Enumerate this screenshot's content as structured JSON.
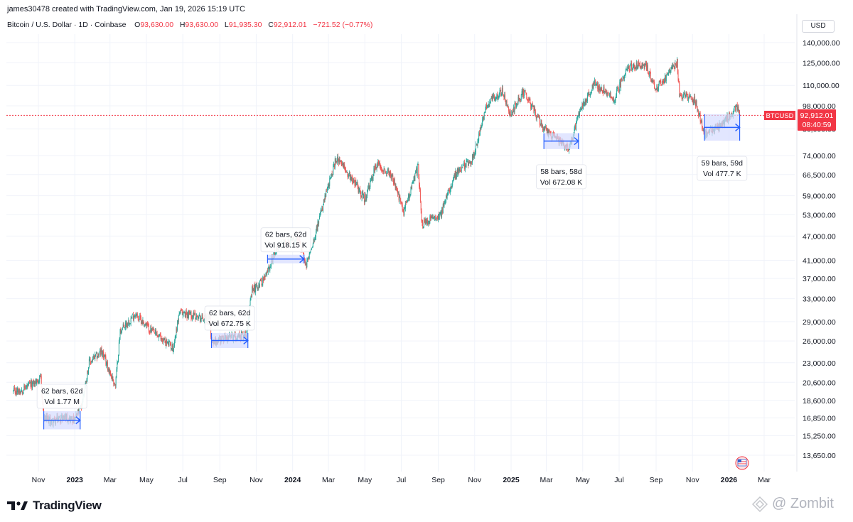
{
  "header": {
    "created_line": "james30478 created with TradingView.com, Jan 19, 2026 15:19 UTC",
    "symbol": "Bitcoin / U.S. Dollar · 1D · Coinbase",
    "o_label": "O",
    "o_value": "93,630.00",
    "h_label": "H",
    "h_value": "93,630.00",
    "l_label": "L",
    "l_value": "91,935.30",
    "c_label": "C",
    "c_value": "92,912.01",
    "change": "−721.52 (−0.77%)"
  },
  "currency": "USD",
  "price_tag": {
    "symbol": "BTCUSD",
    "price": "92,912.01",
    "countdown": "08:40:59"
  },
  "branding": {
    "logo_text": "TradingView",
    "watermark": "@ Zombit"
  },
  "colors": {
    "up": "#26a69a",
    "down": "#ef5350",
    "range_fill": "#d6dcff",
    "range_line": "#2962ff",
    "price_line": "#f23645"
  },
  "chart_data": {
    "type": "candlestick",
    "scale": "log",
    "grid": true,
    "x_ticks": [
      {
        "label": "Nov",
        "date": "2022-11-01",
        "bold": false
      },
      {
        "label": "2023",
        "date": "2023-01-01",
        "bold": true
      },
      {
        "label": "Mar",
        "date": "2023-03-01",
        "bold": false
      },
      {
        "label": "May",
        "date": "2023-05-01",
        "bold": false
      },
      {
        "label": "Jul",
        "date": "2023-07-01",
        "bold": false
      },
      {
        "label": "Sep",
        "date": "2023-09-01",
        "bold": false
      },
      {
        "label": "Nov",
        "date": "2023-11-01",
        "bold": false
      },
      {
        "label": "2024",
        "date": "2024-01-01",
        "bold": true
      },
      {
        "label": "Mar",
        "date": "2024-03-01",
        "bold": false
      },
      {
        "label": "May",
        "date": "2024-05-01",
        "bold": false
      },
      {
        "label": "Jul",
        "date": "2024-07-01",
        "bold": false
      },
      {
        "label": "Sep",
        "date": "2024-09-01",
        "bold": false
      },
      {
        "label": "Nov",
        "date": "2024-11-01",
        "bold": false
      },
      {
        "label": "2025",
        "date": "2025-01-01",
        "bold": true
      },
      {
        "label": "Mar",
        "date": "2025-03-01",
        "bold": false
      },
      {
        "label": "May",
        "date": "2025-05-01",
        "bold": false
      },
      {
        "label": "Jul",
        "date": "2025-07-01",
        "bold": false
      },
      {
        "label": "Sep",
        "date": "2025-09-01",
        "bold": false
      },
      {
        "label": "Nov",
        "date": "2025-11-01",
        "bold": false
      },
      {
        "label": "2026",
        "date": "2026-01-01",
        "bold": true
      },
      {
        "label": "Mar",
        "date": "2026-03-01",
        "bold": false
      }
    ],
    "y_ticks": [
      {
        "label": "140,000.00",
        "value": 140000
      },
      {
        "label": "125,000.00",
        "value": 125000
      },
      {
        "label": "110,000.00",
        "value": 110000
      },
      {
        "label": "98,000.00",
        "value": 98000
      },
      {
        "label": "86,000.00",
        "value": 86000
      },
      {
        "label": "74,000.00",
        "value": 74000
      },
      {
        "label": "66,500.00",
        "value": 66500
      },
      {
        "label": "59,000.00",
        "value": 59000
      },
      {
        "label": "53,000.00",
        "value": 53000
      },
      {
        "label": "47,000.00",
        "value": 47000
      },
      {
        "label": "41,000.00",
        "value": 41000
      },
      {
        "label": "37,000.00",
        "value": 37000
      },
      {
        "label": "33,000.00",
        "value": 33000
      },
      {
        "label": "29,000.00",
        "value": 29000
      },
      {
        "label": "26,000.00",
        "value": 26000
      },
      {
        "label": "23,000.00",
        "value": 23000
      },
      {
        "label": "20,600.00",
        "value": 20600
      },
      {
        "label": "18,600.00",
        "value": 18600
      },
      {
        "label": "16,850.00",
        "value": 16850
      },
      {
        "label": "15,250.00",
        "value": 15250
      },
      {
        "label": "13,650.00",
        "value": 13650
      }
    ],
    "last_price": 92912.01,
    "price_path": [
      [
        "2022-09-20",
        19500
      ],
      [
        "2022-10-05",
        19800
      ],
      [
        "2022-10-25",
        20500
      ],
      [
        "2022-11-05",
        21000
      ],
      [
        "2022-11-10",
        16800
      ],
      [
        "2022-11-25",
        16500
      ],
      [
        "2022-12-15",
        17000
      ],
      [
        "2022-12-31",
        16600
      ],
      [
        "2023-01-12",
        18000
      ],
      [
        "2023-01-25",
        23000
      ],
      [
        "2023-02-15",
        24500
      ],
      [
        "2023-03-10",
        20200
      ],
      [
        "2023-03-18",
        27500
      ],
      [
        "2023-04-12",
        30300
      ],
      [
        "2023-05-10",
        27500
      ],
      [
        "2023-06-15",
        25000
      ],
      [
        "2023-06-25",
        30500
      ],
      [
        "2023-07-15",
        30200
      ],
      [
        "2023-08-15",
        29200
      ],
      [
        "2023-08-18",
        26000
      ],
      [
        "2023-09-15",
        26500
      ],
      [
        "2023-10-15",
        27000
      ],
      [
        "2023-10-25",
        34500
      ],
      [
        "2023-11-15",
        37000
      ],
      [
        "2023-12-05",
        44000
      ],
      [
        "2024-01-11",
        46500
      ],
      [
        "2024-01-23",
        39500
      ],
      [
        "2024-02-15",
        52000
      ],
      [
        "2024-03-14",
        73000
      ],
      [
        "2024-04-15",
        63500
      ],
      [
        "2024-05-01",
        57500
      ],
      [
        "2024-05-21",
        71000
      ],
      [
        "2024-06-15",
        66000
      ],
      [
        "2024-07-05",
        54000
      ],
      [
        "2024-07-29",
        69500
      ],
      [
        "2024-08-05",
        50000
      ],
      [
        "2024-09-06",
        53500
      ],
      [
        "2024-09-27",
        66000
      ],
      [
        "2024-10-29",
        73000
      ],
      [
        "2024-11-22",
        99000
      ],
      [
        "2024-12-17",
        106500
      ],
      [
        "2024-12-30",
        93000
      ],
      [
        "2025-01-22",
        106000
      ],
      [
        "2025-02-25",
        86000
      ],
      [
        "2025-03-15",
        82000
      ],
      [
        "2025-04-08",
        76500
      ],
      [
        "2025-04-25",
        94500
      ],
      [
        "2025-05-22",
        111500
      ],
      [
        "2025-06-22",
        101000
      ],
      [
        "2025-07-14",
        122000
      ],
      [
        "2025-08-14",
        123500
      ],
      [
        "2025-09-01",
        108000
      ],
      [
        "2025-10-06",
        125000
      ],
      [
        "2025-10-10",
        105000
      ],
      [
        "2025-11-05",
        101000
      ],
      [
        "2025-11-21",
        84000
      ],
      [
        "2025-12-15",
        86500
      ],
      [
        "2026-01-14",
        97000
      ],
      [
        "2026-01-19",
        92912
      ]
    ],
    "annotations": [
      {
        "start": "2022-11-10",
        "end": "2023-01-10",
        "low": 15800,
        "high": 17500,
        "label_bars": "62 bars, 62d",
        "label_vol": "Vol 1.77 M",
        "label_pos": "above"
      },
      {
        "start": "2023-08-18",
        "end": "2023-10-18",
        "low": 25000,
        "high": 27200,
        "label_bars": "62 bars, 62d",
        "label_vol": "Vol 672.75 K",
        "label_pos": "above"
      },
      {
        "start": "2023-11-20",
        "end": "2024-01-20",
        "low": 40300,
        "high": 42300,
        "label_bars": "62 bars, 62d",
        "label_vol": "Vol 918.15 K",
        "label_pos": "above"
      },
      {
        "start": "2025-02-25",
        "end": "2025-04-24",
        "low": 76800,
        "high": 84000,
        "label_bars": "58 bars, 58d",
        "label_vol": "Vol 672.08 K",
        "label_pos": "below"
      },
      {
        "start": "2025-11-21",
        "end": "2026-01-19",
        "low": 80500,
        "high": 93500,
        "label_bars": "59 bars, 59d",
        "label_vol": "Vol 477.7 K",
        "label_pos": "below"
      }
    ]
  }
}
